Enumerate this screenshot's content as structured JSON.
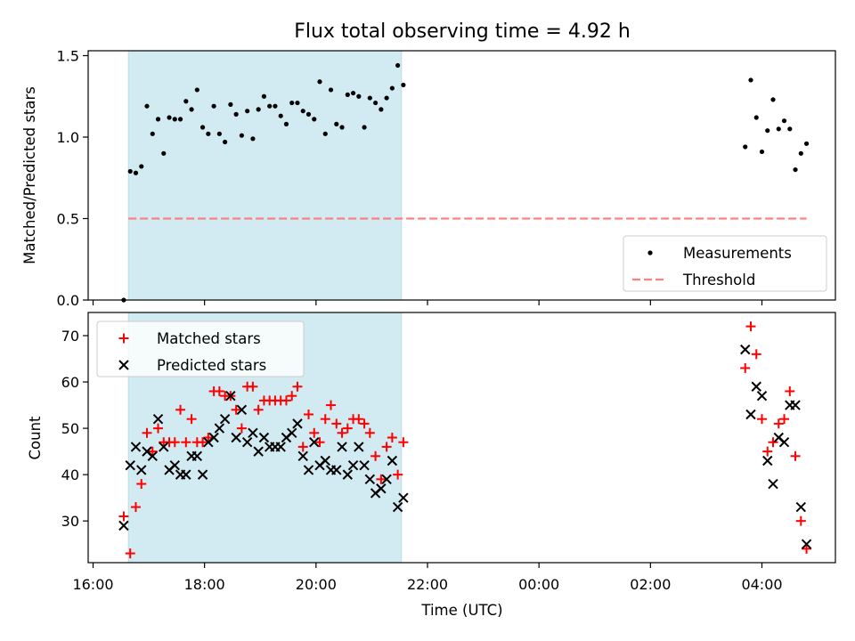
{
  "chart_data": {
    "title": "Flux total observing time = 4.92 h",
    "xlabel": "Time (UTC)",
    "x_ticks": [
      "16:00",
      "18:00",
      "20:00",
      "22:00",
      "00:00",
      "02:00",
      "04:00"
    ],
    "shaded_interval": {
      "start": "16:38",
      "end": "21:32",
      "color": "#add8e6"
    },
    "subplots": [
      {
        "type": "scatter",
        "ylabel": "Matched/Predicted stars",
        "ylim": [
          0,
          1.53
        ],
        "y_ticks": [
          "0.0",
          "0.5",
          "1.0",
          "1.5"
        ],
        "legend": {
          "placement": "lower-right",
          "entries": [
            "Measurements",
            "Threshold"
          ]
        },
        "series": [
          {
            "name": "Measurements",
            "marker": "dot",
            "color": "#000000",
            "x": [
              "16:33",
              "16:40",
              "16:46",
              "16:52",
              "16:58",
              "17:04",
              "17:10",
              "17:16",
              "17:22",
              "17:28",
              "17:34",
              "17:40",
              "17:46",
              "17:52",
              "17:58",
              "18:04",
              "18:10",
              "18:16",
              "18:22",
              "18:28",
              "18:34",
              "18:40",
              "18:46",
              "18:52",
              "18:58",
              "19:04",
              "19:10",
              "19:16",
              "19:22",
              "19:28",
              "19:34",
              "19:40",
              "19:46",
              "19:52",
              "19:58",
              "20:04",
              "20:10",
              "20:16",
              "20:22",
              "20:28",
              "20:34",
              "20:40",
              "20:46",
              "20:52",
              "20:58",
              "21:04",
              "21:10",
              "21:16",
              "21:22",
              "21:28",
              "21:34",
              "03:42",
              "03:48",
              "03:54",
              "04:00",
              "04:06",
              "04:12",
              "04:18",
              "04:24",
              "04:30",
              "04:36",
              "04:42",
              "04:48"
            ],
            "y": [
              0.0,
              0.79,
              0.78,
              0.82,
              1.19,
              1.02,
              1.11,
              0.9,
              1.12,
              1.11,
              1.11,
              1.22,
              1.17,
              1.29,
              1.06,
              1.02,
              1.19,
              1.02,
              0.97,
              1.2,
              1.14,
              1.01,
              1.16,
              0.99,
              1.17,
              1.25,
              1.19,
              1.19,
              1.13,
              1.08,
              1.21,
              1.21,
              1.16,
              1.14,
              1.11,
              1.34,
              1.02,
              1.29,
              1.08,
              1.06,
              1.26,
              1.27,
              1.25,
              1.06,
              1.24,
              1.21,
              1.17,
              1.24,
              1.3,
              1.44,
              1.32,
              0.94,
              1.35,
              1.12,
              0.91,
              1.04,
              1.23,
              1.05,
              1.1,
              1.05,
              0.8,
              0.9,
              0.96
            ]
          },
          {
            "name": "Threshold",
            "style": "dashed",
            "color": "#ff8080",
            "x": [
              "16:38",
              "04:48"
            ],
            "y": [
              0.5,
              0.5
            ]
          }
        ]
      },
      {
        "type": "scatter",
        "ylabel": "Count",
        "ylim": [
          21,
          75
        ],
        "y_ticks": [
          "30",
          "40",
          "50",
          "60",
          "70"
        ],
        "legend": {
          "placement": "upper-left",
          "entries": [
            "Matched stars",
            "Predicted stars"
          ]
        },
        "series": [
          {
            "name": "Matched stars",
            "marker": "plus",
            "color": "#ff0000",
            "x": [
              "16:33",
              "16:40",
              "16:46",
              "16:52",
              "16:58",
              "17:04",
              "17:10",
              "17:16",
              "17:22",
              "17:28",
              "17:34",
              "17:40",
              "17:46",
              "17:52",
              "17:58",
              "18:04",
              "18:10",
              "18:16",
              "18:22",
              "18:28",
              "18:34",
              "18:40",
              "18:46",
              "18:52",
              "18:58",
              "19:04",
              "19:10",
              "19:16",
              "19:22",
              "19:28",
              "19:34",
              "19:40",
              "19:46",
              "19:52",
              "19:58",
              "20:04",
              "20:10",
              "20:16",
              "20:22",
              "20:28",
              "20:34",
              "20:40",
              "20:46",
              "20:52",
              "20:58",
              "21:04",
              "21:10",
              "21:16",
              "21:22",
              "21:28",
              "21:34",
              "03:42",
              "03:48",
              "03:54",
              "04:00",
              "04:06",
              "04:12",
              "04:18",
              "04:24",
              "04:30",
              "04:36",
              "04:42",
              "04:48"
            ],
            "y": [
              31,
              23,
              33,
              38,
              49,
              45,
              50,
              47,
              47,
              47,
              54,
              47,
              52,
              47,
              47,
              48,
              58,
              58,
              57,
              57,
              54,
              50,
              59,
              59,
              54,
              56,
              56,
              56,
              56,
              56,
              57,
              59,
              46,
              53,
              49,
              47,
              52,
              55,
              51,
              49,
              50,
              52,
              52,
              51,
              49,
              44,
              39,
              46,
              48,
              40,
              47,
              63,
              72,
              66,
              52,
              45,
              47,
              51,
              52,
              58,
              44,
              30,
              24
            ]
          },
          {
            "name": "Predicted stars",
            "marker": "x",
            "color": "#000000",
            "x": [
              "16:33",
              "16:40",
              "16:46",
              "16:52",
              "16:58",
              "17:04",
              "17:10",
              "17:16",
              "17:22",
              "17:28",
              "17:34",
              "17:40",
              "17:46",
              "17:52",
              "17:58",
              "18:04",
              "18:10",
              "18:16",
              "18:22",
              "18:28",
              "18:34",
              "18:40",
              "18:46",
              "18:52",
              "18:58",
              "19:04",
              "19:10",
              "19:16",
              "19:22",
              "19:28",
              "19:34",
              "19:40",
              "19:46",
              "19:52",
              "19:58",
              "20:04",
              "20:10",
              "20:16",
              "20:22",
              "20:28",
              "20:34",
              "20:40",
              "20:46",
              "20:52",
              "20:58",
              "21:04",
              "21:10",
              "21:16",
              "21:22",
              "21:28",
              "21:34",
              "03:42",
              "03:48",
              "03:54",
              "04:00",
              "04:06",
              "04:12",
              "04:18",
              "04:24",
              "04:30",
              "04:36",
              "04:42",
              "04:48"
            ],
            "y": [
              29,
              42,
              46,
              41,
              45,
              44,
              52,
              46,
              41,
              42,
              40,
              40,
              44,
              44,
              40,
              47,
              48,
              50,
              52,
              57,
              48,
              54,
              47,
              49,
              45,
              48,
              46,
              46,
              46,
              48,
              49,
              51,
              44,
              41,
              47,
              42,
              43,
              41,
              41,
              46,
              40,
              42,
              46,
              42,
              39,
              36,
              37,
              39,
              43,
              33,
              35,
              67,
              53,
              59,
              57,
              43,
              38,
              48,
              47,
              55,
              55,
              33,
              25
            ]
          }
        ]
      }
    ]
  }
}
